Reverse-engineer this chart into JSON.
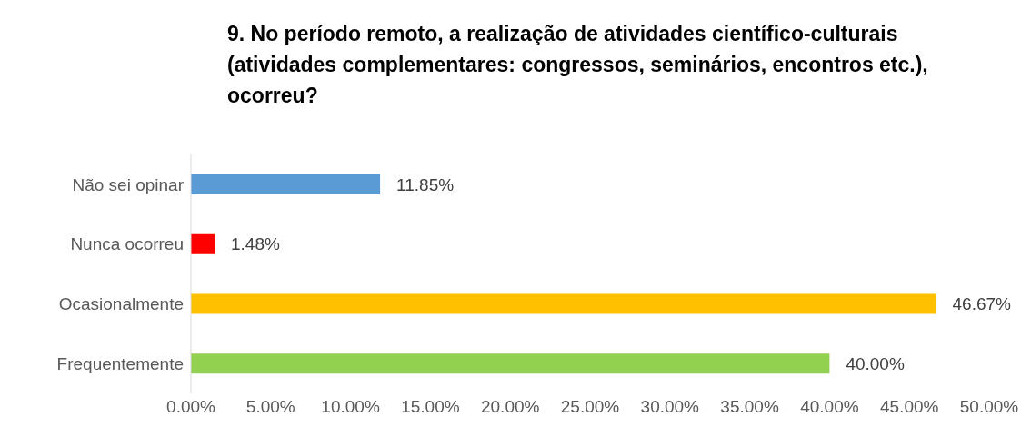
{
  "chart_data": {
    "type": "bar",
    "orientation": "horizontal",
    "title": "9. No período remoto, a realização de atividades científico-culturais (atividades complementares: congressos, seminários, encontros etc.), ocorreu?",
    "categories": [
      "Não sei opinar",
      "Nunca ocorreu",
      "Ocasionalmente",
      "Frequentemente"
    ],
    "values": [
      11.85,
      1.48,
      46.67,
      40.0
    ],
    "colors": [
      "#5b9bd5",
      "#ff0000",
      "#ffc000",
      "#92d050"
    ],
    "value_labels": [
      "11.85%",
      "1.48%",
      "46.67%",
      "40.00%"
    ],
    "xlim": [
      0,
      50
    ],
    "xticks": [
      {
        "value": 0,
        "label": "0.00%"
      },
      {
        "value": 5,
        "label": "5.00%"
      },
      {
        "value": 10,
        "label": "10.00%"
      },
      {
        "value": 15,
        "label": "15.00%"
      },
      {
        "value": 20,
        "label": "20.00%"
      },
      {
        "value": 25,
        "label": "25.00%"
      },
      {
        "value": 30,
        "label": "30.00%"
      },
      {
        "value": 35,
        "label": "35.00%"
      },
      {
        "value": 40,
        "label": "40.00%"
      },
      {
        "value": 45,
        "label": "45.00%"
      },
      {
        "value": 50,
        "label": "50.00%"
      }
    ]
  }
}
